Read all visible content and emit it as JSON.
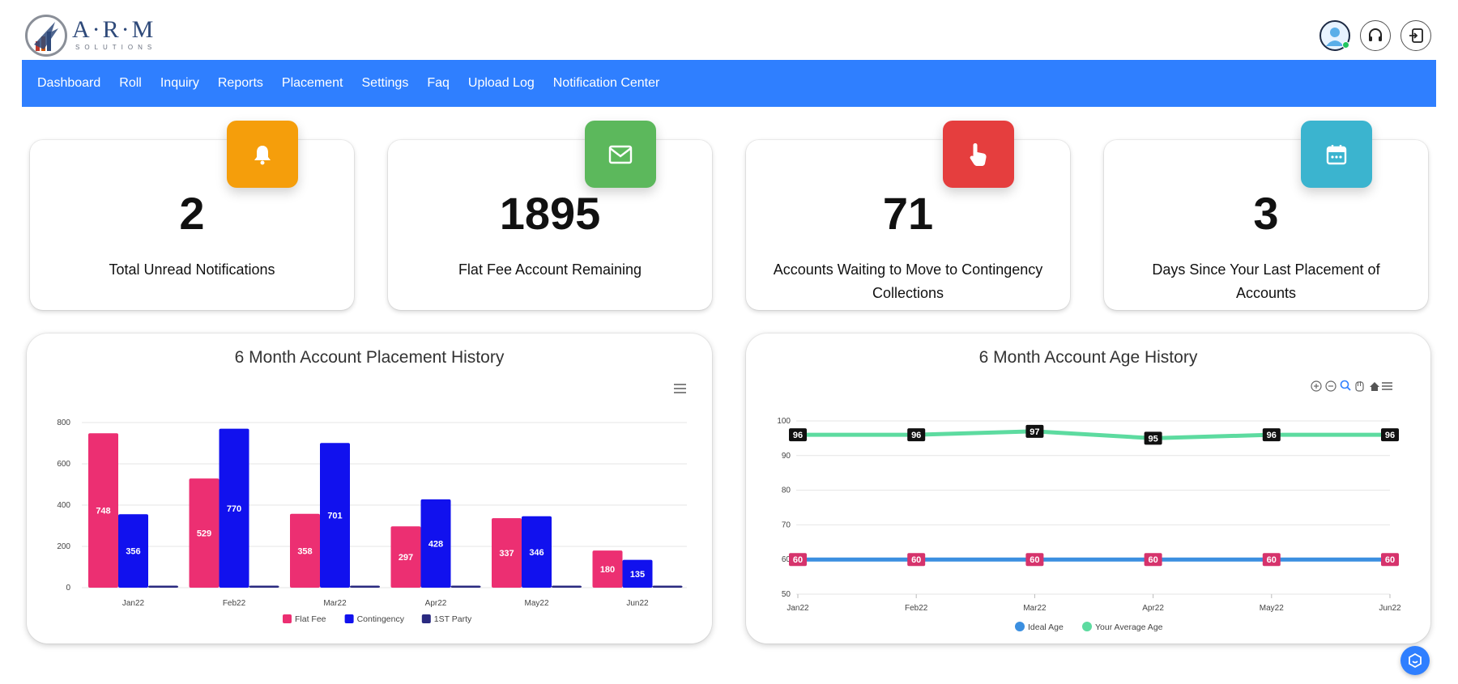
{
  "brand": {
    "logo_text": "A·R·M",
    "logo_sub": "SOLUTIONS"
  },
  "nav": [
    "Dashboard",
    "Roll",
    "Inquiry",
    "Reports",
    "Placement",
    "Settings",
    "Faq",
    "Upload Log",
    "Notification Center"
  ],
  "stats": [
    {
      "value": "2",
      "label": "Total Unread Notifications",
      "icon": "bell-icon",
      "color": "#f59e0b"
    },
    {
      "value": "1895",
      "label": "Flat Fee Account Remaining",
      "icon": "mail-icon",
      "color": "#5cb85c"
    },
    {
      "value": "71",
      "label": "Accounts Waiting to Move to Contingency Collections",
      "icon": "hand-pointer-icon",
      "color": "#e53e3e"
    },
    {
      "value": "3",
      "label": "Days Since Your Last Placement of Accounts",
      "icon": "calendar-icon",
      "color": "#3bb4cf"
    }
  ],
  "chart_data": [
    {
      "type": "bar",
      "title": "6 Month Account Placement History",
      "categories": [
        "Jan22",
        "Feb22",
        "Mar22",
        "Apr22",
        "May22",
        "Jun22"
      ],
      "series": [
        {
          "name": "Flat Fee",
          "color": "#ec2f72",
          "values": [
            748,
            529,
            358,
            297,
            337,
            180
          ]
        },
        {
          "name": "Contingency",
          "color": "#1111ee",
          "values": [
            356,
            770,
            701,
            428,
            346,
            135
          ]
        },
        {
          "name": "1ST Party",
          "color": "#2a2a80",
          "values": [
            0,
            0,
            0,
            0,
            0,
            0
          ]
        }
      ],
      "ylim": [
        0,
        800
      ],
      "yticks": [
        "800",
        "600",
        "400",
        "200",
        "0"
      ],
      "legend": "bottom",
      "grid": true
    },
    {
      "type": "line",
      "title": "6 Month Account Age History",
      "categories": [
        "Jan22",
        "Feb22",
        "Mar22",
        "Apr22",
        "May22",
        "Jun22"
      ],
      "series": [
        {
          "name": "Ideal Age",
          "color": "#3b8fe0",
          "values": [
            60,
            60,
            60,
            60,
            60,
            60
          ]
        },
        {
          "name": "Your Average Age",
          "color": "#5ddba0",
          "values": [
            96,
            96,
            97,
            95,
            96,
            96
          ]
        }
      ],
      "ylim": [
        50,
        100
      ],
      "yticks": [
        "100",
        "90",
        "80",
        "70",
        "60",
        "50"
      ],
      "legend": "bottom",
      "grid": true
    }
  ]
}
